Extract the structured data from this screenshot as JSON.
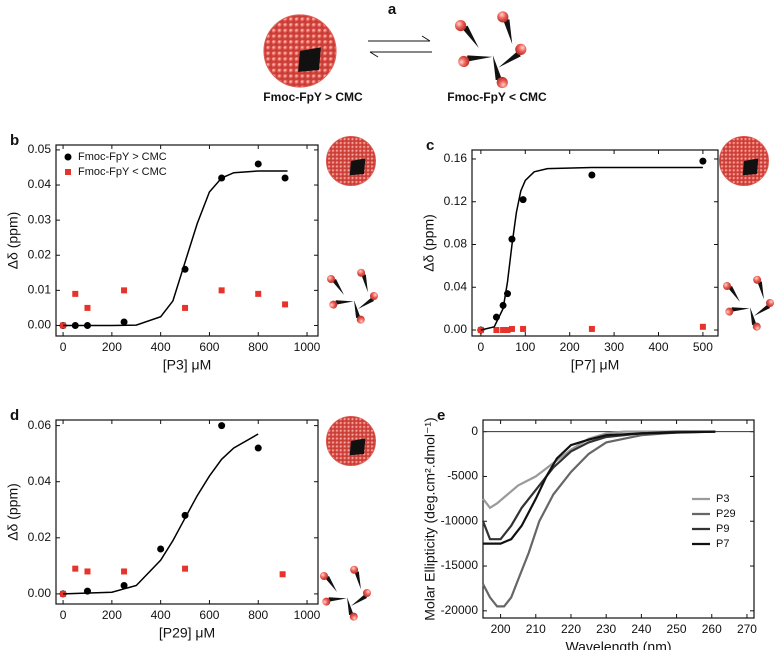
{
  "panel_a": {
    "label": "a",
    "left_label": "Fmoc-FpY > CMC",
    "right_label": "Fmoc-FpY < CMC"
  },
  "chart_data": [
    {
      "type": "scatter",
      "label": "b",
      "xlabel": "[P3] μM",
      "ylabel": "Δδ (ppm)",
      "xlim": [
        -29,
        1045
      ],
      "xticks": [
        0,
        200,
        400,
        600,
        800,
        1000
      ],
      "ylim": [
        -0.003,
        0.0514
      ],
      "yticks": [
        {
          "value": 0,
          "label": "0.00"
        },
        0.01,
        0.02,
        0.03,
        0.04,
        0.05
      ],
      "legend": "upper left",
      "series": [
        {
          "name": "Fmoc-FpY > CMC",
          "color": "#000000",
          "marker": "circle",
          "x": [
            0,
            50,
            100,
            250,
            500,
            650,
            800,
            910
          ],
          "values": [
            0,
            0,
            0,
            0.001,
            0.016,
            0.042,
            0.046,
            0.042
          ]
        },
        {
          "name": "Fmoc-FpY < CMC",
          "color": "#e8332b",
          "marker": "square",
          "x": [
            0,
            50,
            100,
            250,
            500,
            650,
            800,
            910
          ],
          "values": [
            0,
            0.009,
            0.005,
            0.01,
            0.005,
            0.01,
            0.009,
            0.006
          ]
        },
        {
          "style": "line",
          "color": "#000000",
          "x": [
            0,
            200,
            300,
            400,
            450,
            500,
            550,
            600,
            650,
            700,
            800,
            920
          ],
          "values": [
            0,
            0,
            0.0001,
            0.0025,
            0.007,
            0.018,
            0.029,
            0.038,
            0.042,
            0.0435,
            0.044,
            0.044
          ]
        }
      ]
    },
    {
      "type": "scatter",
      "label": "c",
      "xlabel": "[P7] μM",
      "ylabel": "Δδ (ppm)",
      "xlim": [
        -20,
        534
      ],
      "xticks": [
        0,
        100,
        200,
        300,
        400,
        500
      ],
      "ylim": [
        -0.0056,
        0.1684
      ],
      "yticks": [
        {
          "value": 0,
          "label": "0.00"
        },
        0.04,
        0.08,
        0.12,
        0.16
      ],
      "series": [
        {
          "color": "#000000",
          "marker": "circle",
          "x": [
            0,
            35,
            50,
            60,
            70,
            95,
            250,
            500
          ],
          "values": [
            0,
            0.012,
            0.023,
            0.034,
            0.085,
            0.122,
            0.145,
            0.158
          ]
        },
        {
          "color": "#e8332b",
          "marker": "square",
          "x": [
            0,
            35,
            50,
            60,
            70,
            95,
            250,
            500
          ],
          "values": [
            0,
            0,
            0,
            0,
            0.001,
            0.001,
            0.001,
            0.003
          ]
        },
        {
          "style": "line",
          "color": "#000000",
          "x": [
            0,
            30,
            50,
            60,
            70,
            80,
            90,
            100,
            120,
            150,
            250,
            500
          ],
          "values": [
            0,
            0.003,
            0.02,
            0.045,
            0.08,
            0.11,
            0.13,
            0.14,
            0.148,
            0.151,
            0.152,
            0.152
          ]
        }
      ]
    },
    {
      "type": "scatter",
      "label": "d",
      "xlabel": "[P29] μM",
      "ylabel": "Δδ (ppm)",
      "xlim": [
        -29,
        1045
      ],
      "xticks": [
        0,
        200,
        400,
        600,
        800,
        1000
      ],
      "ylim": [
        -0.0036,
        0.062
      ],
      "yticks": [
        {
          "value": 0,
          "label": "0.00"
        },
        0.02,
        0.04,
        0.06
      ],
      "series": [
        {
          "color": "#000000",
          "marker": "circle",
          "x": [
            0,
            100,
            250,
            400,
            500,
            650,
            800
          ],
          "values": [
            0,
            0.001,
            0.003,
            0.016,
            0.028,
            0.06,
            0.052
          ]
        },
        {
          "color": "#e8332b",
          "marker": "square",
          "x": [
            0,
            50,
            100,
            250,
            500,
            900
          ],
          "values": [
            0,
            0.009,
            0.008,
            0.008,
            0.009,
            0.007
          ]
        },
        {
          "style": "line",
          "color": "#000000",
          "x": [
            0,
            200,
            300,
            400,
            450,
            500,
            550,
            600,
            650,
            700,
            800
          ],
          "values": [
            0,
            0.0006,
            0.003,
            0.012,
            0.019,
            0.027,
            0.035,
            0.042,
            0.048,
            0.052,
            0.057
          ]
        }
      ]
    },
    {
      "type": "line",
      "label": "e",
      "xlabel": "Wavelength (nm)",
      "ylabel": "Molar Ellipticity (deg.cm².dmol⁻¹)",
      "xlim": [
        195,
        272
      ],
      "xticks": [
        200,
        210,
        220,
        230,
        240,
        250,
        260,
        270
      ],
      "ylim": [
        -20800,
        1300
      ],
      "yticks": [
        0,
        -5000,
        -10000,
        -15000,
        -20000
      ],
      "legend": "center right",
      "series": [
        {
          "name": "P3",
          "color": "#9a9a9a",
          "x": [
            195,
            197,
            199,
            202,
            205,
            210,
            215,
            220,
            225,
            230,
            235,
            240,
            250,
            260
          ],
          "values": [
            -7500,
            -8500,
            -8000,
            -7000,
            -6000,
            -5000,
            -3500,
            -2000,
            -800,
            -200,
            0,
            0,
            0,
            0
          ]
        },
        {
          "name": "P29",
          "color": "#666666",
          "x": [
            195,
            197,
            199,
            201,
            203,
            205,
            208,
            211,
            215,
            220,
            225,
            230,
            240,
            250,
            261
          ],
          "values": [
            -17000,
            -18500,
            -19500,
            -19500,
            -18500,
            -16500,
            -13500,
            -10000,
            -7000,
            -4500,
            -2500,
            -1200,
            -400,
            -100,
            0
          ]
        },
        {
          "name": "P9",
          "color": "#333333",
          "x": [
            195,
            197,
            200,
            203,
            206,
            210,
            215,
            220,
            225,
            230,
            240,
            250,
            261
          ],
          "values": [
            -10000,
            -12000,
            -12000,
            -10500,
            -8500,
            -6500,
            -4000,
            -2200,
            -1200,
            -600,
            -200,
            0,
            0
          ]
        },
        {
          "name": "P7",
          "color": "#111111",
          "x": [
            195,
            200,
            203,
            206,
            210,
            213,
            216,
            220,
            225,
            230,
            240,
            250,
            261
          ],
          "values": [
            -12500,
            -12500,
            -12000,
            -10500,
            -7500,
            -5000,
            -3000,
            -1500,
            -900,
            -400,
            -200,
            -100,
            0
          ]
        }
      ]
    }
  ]
}
